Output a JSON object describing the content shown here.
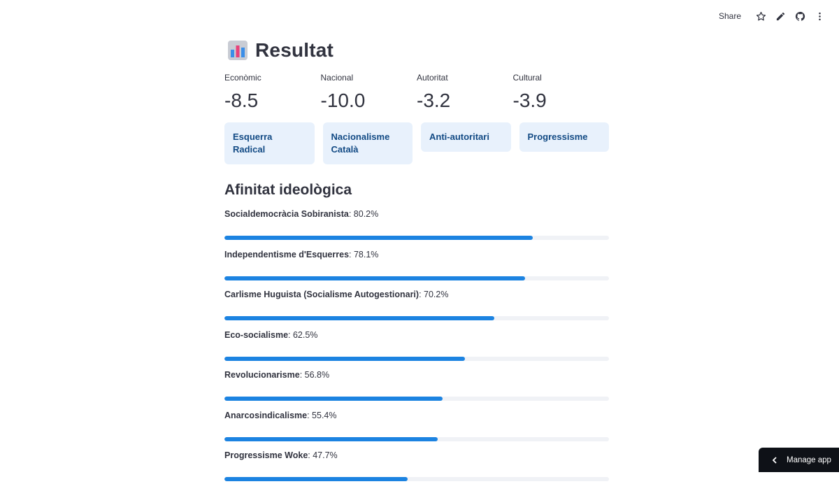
{
  "toolbar": {
    "share_label": "Share",
    "icons": [
      "star-icon",
      "pencil-icon",
      "github-icon",
      "kebab-menu-icon"
    ]
  },
  "header": {
    "emoji_icon": "bar-chart-icon",
    "title": "Resultat"
  },
  "metrics": [
    {
      "label": "Econòmic",
      "value": "-8.5"
    },
    {
      "label": "Nacional",
      "value": "-10.0"
    },
    {
      "label": "Autoritat",
      "value": "-3.2"
    },
    {
      "label": "Cultural",
      "value": "-3.9"
    }
  ],
  "badges": [
    {
      "label": "Esquerra Radical"
    },
    {
      "label": "Nacionalisme Català"
    },
    {
      "label": "Anti-autoritari"
    },
    {
      "label": "Progressisme"
    }
  ],
  "affinity": {
    "title": "Afinitat ideològica",
    "items": [
      {
        "name": "Socialdemocràcia Sobiranista",
        "percent_label": ": 80.2%",
        "value": 80.2
      },
      {
        "name": "Independentisme d'Esquerres",
        "percent_label": ": 78.1%",
        "value": 78.1
      },
      {
        "name": "Carlisme Huguista (Socialisme Autogestionari)",
        "percent_label": ": 70.2%",
        "value": 70.2
      },
      {
        "name": "Eco-socialisme",
        "percent_label": ": 62.5%",
        "value": 62.5
      },
      {
        "name": "Revolucionarisme",
        "percent_label": ": 56.8%",
        "value": 56.8
      },
      {
        "name": "Anarcosindicalisme",
        "percent_label": ": 55.4%",
        "value": 55.4
      },
      {
        "name": "Progressisme Woke",
        "percent_label": ": 47.7%",
        "value": 47.7
      }
    ]
  },
  "manage_app": {
    "label": "Manage app",
    "icon": "chevron-left-icon"
  },
  "colors": {
    "accent": "#1c83e1",
    "badge_bg": "#e8f1fc",
    "badge_text": "#124a84"
  }
}
